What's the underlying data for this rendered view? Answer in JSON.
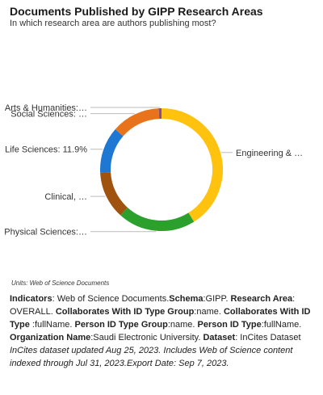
{
  "chart_data": {
    "type": "pie",
    "donut": true,
    "title": "Documents Published by GIPP Research Areas",
    "subtitle": "In which research area are authors publishing most?",
    "slices": [
      {
        "label": "Engineering & …",
        "value": 40.0,
        "color": "#FFC20E"
      },
      {
        "label": "Physical Sciences:…",
        "value": 20.0,
        "color": "#2CA02C"
      },
      {
        "label": "Clinical, …",
        "value": 12.2,
        "color": "#A0520F"
      },
      {
        "label": "Life Sciences: 11.9%",
        "value": 11.9,
        "color": "#1F77D4"
      },
      {
        "label": "Social Sciences: …",
        "value": 12.5,
        "color": "#E8731A"
      },
      {
        "label": "Arts & Humanities:…",
        "value": 0.7,
        "color": "#7B4FA0"
      }
    ]
  },
  "units_note": "Units: Web of Science Documents",
  "footer": {
    "indicators_label": "Indicators",
    "indicators_value": ": Web of Science Documents.",
    "schema_label": "Schema",
    "schema_value": ":GIPP. ",
    "research_area_label": "Research Area",
    "research_area_value": ": OVERALL. ",
    "collab_group_label": "Collaborates With ID Type Group",
    "collab_group_value": ":name. ",
    "collab_type_label": "Collaborates With ID Type",
    "collab_type_value": " :fullName. ",
    "person_group_label": "Person ID Type Group",
    "person_group_value": ":name. ",
    "person_type_label": "Person ID Type",
    "person_type_value": ":fullName. ",
    "org_label": "Organization Name",
    "org_value": ":Saudi Electronic University. ",
    "dataset_label": "Dataset",
    "dataset_value": ": InCites Dataset",
    "note": "InCites dataset updated Aug 25, 2023. Includes Web of Science content indexed through Jul 31, 2023.Export Date: Sep 7, 2023."
  }
}
